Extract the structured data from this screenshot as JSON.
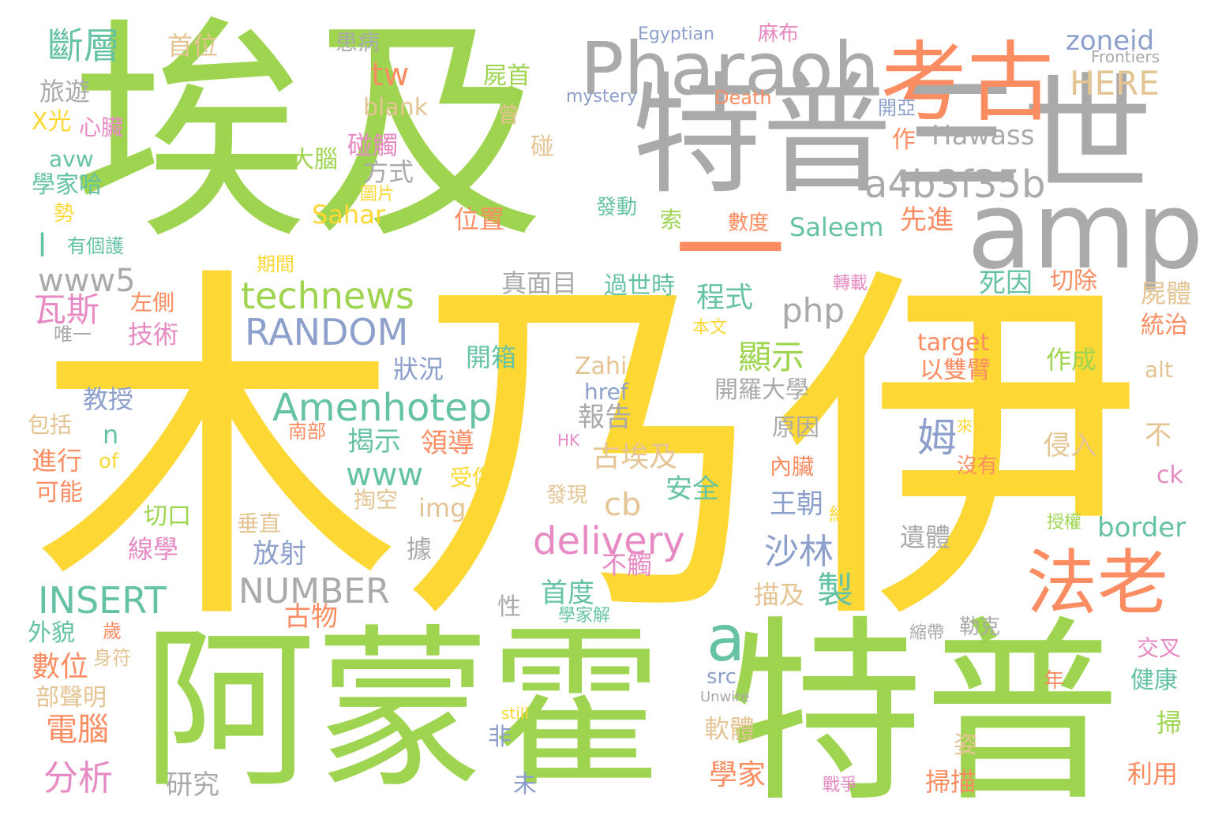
{
  "palette": {
    "green": "#9ed44f",
    "yellow": "#fdd835",
    "gray": "#aaaaaa",
    "orange": "#fc8d62",
    "blue": "#8da0cb",
    "pink": "#e78ac3",
    "teal": "#66c2a5",
    "tan": "#e5c494"
  },
  "words": [
    "木乃伊",
    "埃及",
    "阿蒙霍",
    "特普",
    "特普三世",
    "一",
    "amp",
    "Pharaoh",
    "考古",
    "法老",
    "a",
    "a4b3f35b",
    "technews",
    "RANDOM",
    "Amenhotep",
    "delivery",
    "INSERT",
    "NUMBER",
    "www5",
    "www",
    "php",
    "HERE",
    "zoneid",
    "Hawass",
    "Saleem",
    "tw",
    "blank",
    "斷層",
    "首位",
    "患病",
    "旅遊",
    "X光",
    "心臟",
    "avw",
    "學家哈",
    "勢",
    "有個護",
    "l",
    "瓦斯",
    "左側",
    "唯一",
    "技術",
    "狀況",
    "開箱",
    "顯示",
    "開羅大學",
    "教授",
    "包括",
    "南部",
    "進行",
    "of",
    "可能",
    "切口",
    "線學",
    "外貌",
    "數位",
    "部聲明",
    "身符",
    "歲",
    "電腦",
    "分析",
    "研究",
    "未",
    "非",
    "軟體",
    "學家",
    "戰爭",
    "掃描",
    "利用",
    "掃",
    "姿",
    "still",
    "Unwire",
    "年",
    "健康",
    "交叉",
    "縮帶",
    "勒克",
    "Egyptian",
    "麻布",
    "Frontiers",
    "mystery",
    "Death",
    "屍首",
    "曾",
    "碰",
    "開亞",
    "作",
    "碰觸",
    "大腦",
    "方式",
    "圖片",
    "Sahar",
    "發動",
    "索",
    "數度",
    "位置",
    "先進",
    "期間",
    "真面目",
    "過世時",
    "轉載",
    "本文",
    "程式",
    "死因",
    "切除",
    "屍體",
    "統治",
    "target",
    "以雙臂",
    "作成",
    "alt",
    "Zahi",
    "href",
    "報告",
    "古埃及",
    "cb",
    "安全",
    "王朝",
    "沙林",
    "姆",
    "HK",
    "來源",
    "沒有",
    "不",
    "ck",
    "侵入",
    "內臟",
    "原因",
    "揭示",
    "領導",
    "受傷",
    "掏空",
    "img",
    "發現",
    "放射",
    "不觸",
    "垂直",
    "據",
    "首度",
    "描及",
    "製",
    "遺體",
    "約",
    "授權",
    "border",
    "性",
    "古物",
    "學家解",
    "src",
    "n"
  ]
}
